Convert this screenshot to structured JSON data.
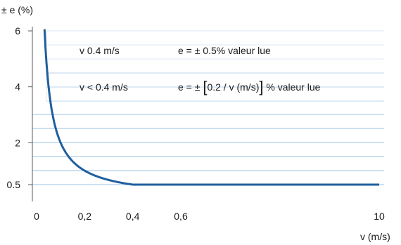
{
  "chart_data": {
    "type": "line",
    "ylabel": "± e (%)",
    "xlabel": "v (m/s)",
    "x_tick_labels": [
      "0",
      "0,2",
      "0,4",
      "0,6",
      "10"
    ],
    "x_tick_values": [
      0,
      0.2,
      0.4,
      0.6,
      10
    ],
    "y_tick_labels": [
      "0.5",
      "2",
      "4",
      "6"
    ],
    "y_tick_values": [
      0.5,
      2,
      4,
      6
    ],
    "ylim": [
      0,
      6
    ],
    "grid": true,
    "series": [
      {
        "color": "#1f5f9e",
        "x": [
          0.033,
          0.04,
          0.05,
          0.06,
          0.08,
          0.1,
          0.12,
          0.15,
          0.2,
          0.25,
          0.3,
          0.35,
          0.4,
          0.6,
          10
        ],
        "y": [
          6.0,
          5.0,
          4.0,
          3.33,
          2.5,
          2.0,
          1.67,
          1.33,
          1.0,
          0.8,
          0.67,
          0.57,
          0.5,
          0.5,
          0.5
        ]
      }
    ],
    "annotations": {
      "row1_left": "v    0.4 m/s",
      "row1_right": "e = ± 0.5% valeur lue",
      "row2_left": "v < 0.4 m/s",
      "row2_right_pre": "e = ± ",
      "bracket_open": "[",
      "row2_right_mid": "0.2 / v (m/s)",
      "bracket_close": "]",
      "row2_right_post": " % valeur lue"
    },
    "colors": {
      "curve": "#1f5f9e",
      "grid_strong": "#9cc2e6",
      "grid_faint": "#dde9f5",
      "axis": "#5a5a5a"
    }
  }
}
